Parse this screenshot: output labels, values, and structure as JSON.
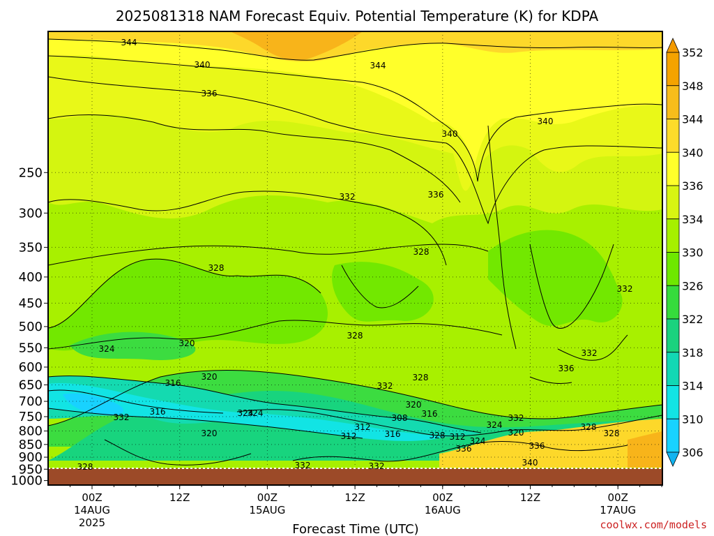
{
  "chart_data": {
    "type": "heatmap",
    "title": "2025081318 NAM Forecast Equiv. Potential Temperature (K) for KDPA",
    "xlabel": "Forecast Time (UTC)",
    "ylabel": "",
    "y_scale": "log",
    "y_inverted": true,
    "y_ticks": [
      250,
      300,
      350,
      400,
      450,
      500,
      550,
      600,
      650,
      700,
      750,
      800,
      850,
      900,
      950,
      1000
    ],
    "x_ticks": [
      {
        "label": "00Z",
        "sub": "14AUG",
        "sub2": "2025"
      },
      {
        "label": "12Z",
        "sub": "",
        "sub2": ""
      },
      {
        "label": "00Z",
        "sub": "15AUG",
        "sub2": ""
      },
      {
        "label": "12Z",
        "sub": "",
        "sub2": ""
      },
      {
        "label": "00Z",
        "sub": "16AUG",
        "sub2": ""
      },
      {
        "label": "12Z",
        "sub": "",
        "sub2": ""
      },
      {
        "label": "00Z",
        "sub": "17AUG",
        "sub2": ""
      }
    ],
    "colorbar": {
      "labels": [
        352,
        348,
        344,
        340,
        336,
        334,
        330,
        326,
        322,
        318,
        314,
        310,
        306
      ],
      "colors": [
        "#f5a300",
        "#f8bd1a",
        "#fddc2a",
        "#ffff2a",
        "#d8f512",
        "#a6f000",
        "#6ee800",
        "#36dc3c",
        "#1ad27e",
        "#12d8b4",
        "#12e4e4",
        "#18d2ff"
      ]
    },
    "contour_labels": [
      "344",
      "340",
      "344",
      "336",
      "340",
      "340",
      "332",
      "336",
      "328",
      "328",
      "332",
      "324",
      "328",
      "320",
      "316",
      "324",
      "316",
      "320",
      "332",
      "328",
      "320",
      "312",
      "316",
      "324",
      "332",
      "308",
      "312",
      "320",
      "316",
      "328",
      "312",
      "324",
      "320",
      "332",
      "336",
      "340",
      "332",
      "328",
      "336",
      "332",
      "336",
      "328",
      "324",
      "332",
      "328"
    ],
    "grid": true,
    "underground_pressure": 980
  },
  "credit": "coolwx.com/models"
}
